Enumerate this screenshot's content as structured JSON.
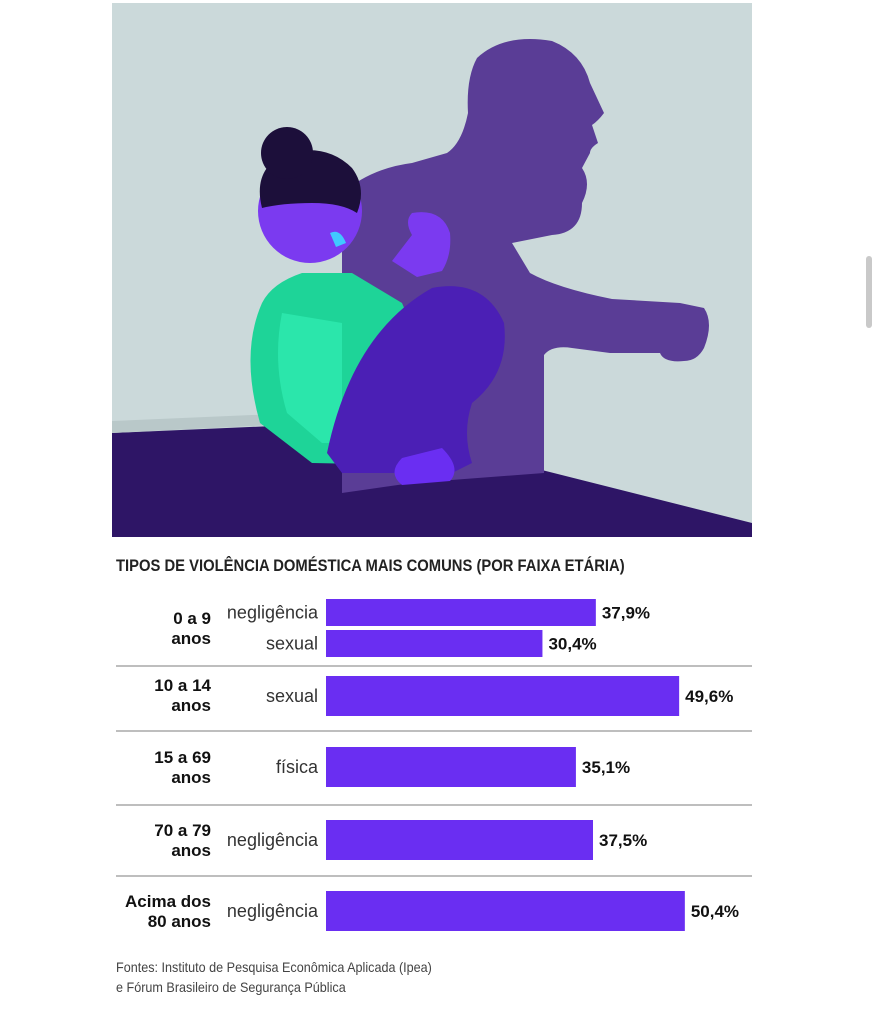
{
  "chart_data": {
    "type": "bar",
    "orientation": "horizontal",
    "title": "TIPOS DE VIOLÊNCIA DOMÉSTICA MAIS COMUNS (POR FAIXA ETÁRIA)",
    "unit": "%",
    "xlim": [
      0,
      60
    ],
    "groups": [
      {
        "line1": "0 a 9",
        "line2": "anos",
        "bars": [
          {
            "label": "negligência",
            "value": 37.9,
            "value_label": "37,9%"
          },
          {
            "label": "sexual",
            "value": 30.4,
            "value_label": "30,4%"
          }
        ]
      },
      {
        "line1": "10 a 14",
        "line2": "anos",
        "bars": [
          {
            "label": "sexual",
            "value": 49.6,
            "value_label": "49,6%"
          }
        ]
      },
      {
        "line1": "15 a 69",
        "line2": "anos",
        "bars": [
          {
            "label": "física",
            "value": 35.1,
            "value_label": "35,1%"
          }
        ]
      },
      {
        "line1": "70 a 79",
        "line2": "anos",
        "bars": [
          {
            "label": "negligência",
            "value": 37.5,
            "value_label": "37,5%"
          }
        ]
      },
      {
        "line1": "Acima dos",
        "line2": "80 anos",
        "bars": [
          {
            "label": "negligência",
            "value": 50.4,
            "value_label": "50,4%"
          }
        ]
      }
    ]
  },
  "colors": {
    "bar": "#6a2ef2",
    "divider": "#a8a8a8",
    "illustration_wall": "#cbd9da",
    "illustration_floor": "#2e1566",
    "illustration_shadow": "#5a3d96"
  },
  "source": {
    "line1": "Fontes: Instituto de Pesquisa Econômica Aplicada (Ipea)",
    "line2": "e Fórum Brasileiro de Segurança Pública"
  }
}
